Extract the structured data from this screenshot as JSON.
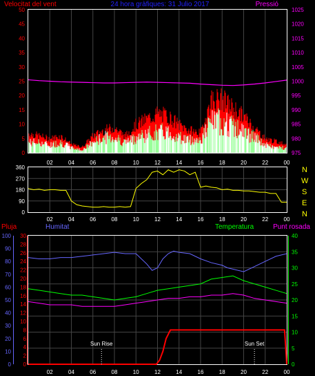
{
  "colors": {
    "wind": "#ff0000",
    "gust_fill": "#ff0000",
    "gust_dark": "#ffffff",
    "wind_mid": "#99ff99",
    "pressure": "#ff00ff",
    "direction": "#ffff00",
    "rain": "#ff0000",
    "humidity": "#6666ff",
    "temperature": "#00ff00",
    "dewpoint": "#ff00ff",
    "frame": "#ffffff",
    "grid": "#444444",
    "title": "#2222ff",
    "ticks_red": "#ff0000",
    "ticks_magenta": "#ff00ff",
    "ticks_blue": "#6666ff",
    "ticks_green": "#00ff00",
    "ticks_yellow": "#ffff00"
  },
  "chart_data": [
    {
      "type": "line",
      "title": "24 hora gràfiques: 31 Julio 2017",
      "left_label": "Velocitat del vent",
      "right_label": "Pressió",
      "x_ticks": [
        "02",
        "04",
        "06",
        "08",
        "10",
        "12",
        "14",
        "16",
        "18",
        "20",
        "22",
        "00"
      ],
      "y_left_ticks": [
        0,
        5,
        10,
        15,
        20,
        25,
        30,
        35,
        40,
        45,
        50
      ],
      "ylim_left": [
        0,
        50
      ],
      "y_right_ticks": [
        975,
        980,
        985,
        990,
        995,
        1000,
        1005,
        1010,
        1015,
        1020,
        1025
      ],
      "ylim_right": [
        975,
        1025
      ],
      "xlim": [
        0,
        24
      ],
      "series": [
        {
          "key": "pressure",
          "axis": "right",
          "x": [
            0,
            1,
            2,
            3,
            4,
            5,
            6,
            7,
            8,
            9,
            10,
            11,
            12,
            13,
            14,
            15,
            16,
            17,
            18,
            19,
            20,
            21,
            22,
            23,
            24
          ],
          "values": [
            1000.5,
            1000.2,
            1000.0,
            999.8,
            999.7,
            999.6,
            999.5,
            999.4,
            999.4,
            999.5,
            999.6,
            999.7,
            999.6,
            999.5,
            999.4,
            999.3,
            999.0,
            998.8,
            998.6,
            998.5,
            998.7,
            999.0,
            999.4,
            999.9,
            1000.4
          ]
        },
        {
          "key": "gust",
          "axis": "left",
          "x": [
            0,
            1,
            2,
            3,
            4,
            5,
            6,
            7,
            8,
            9,
            10,
            11,
            12,
            13,
            14,
            15,
            16,
            17,
            18,
            19,
            20,
            21,
            22,
            23,
            24
          ],
          "values": [
            7,
            6,
            5,
            6,
            3,
            2,
            6,
            8,
            9,
            6,
            10,
            12,
            14,
            13,
            10,
            8,
            7,
            19,
            19,
            16,
            13,
            9,
            5,
            4,
            3
          ]
        },
        {
          "key": "wind",
          "axis": "left",
          "x": [
            0,
            1,
            2,
            3,
            4,
            5,
            6,
            7,
            8,
            9,
            10,
            11,
            12,
            13,
            14,
            15,
            16,
            17,
            18,
            19,
            20,
            21,
            22,
            23,
            24
          ],
          "values": [
            4,
            4,
            3,
            4,
            2,
            1,
            4,
            6,
            6,
            4,
            6,
            7,
            8,
            8,
            6,
            5,
            5,
            12,
            12,
            10,
            8,
            6,
            3,
            2,
            2
          ]
        }
      ]
    },
    {
      "type": "line",
      "right_labels": [
        "N",
        "W",
        "S",
        "E",
        "N"
      ],
      "y_ticks": [
        0,
        90,
        180,
        270,
        360
      ],
      "ylim": [
        0,
        360
      ],
      "x_ticks": [
        "02",
        "04",
        "06",
        "08",
        "10",
        "12",
        "14",
        "16",
        "18",
        "20",
        "22",
        "00"
      ],
      "xlim": [
        0,
        24
      ],
      "series": [
        {
          "key": "direction",
          "x": [
            0,
            0.5,
            1,
            1.5,
            2,
            2.5,
            3,
            3.5,
            4,
            4.5,
            5,
            5.5,
            6,
            6.5,
            7,
            7.5,
            8,
            8.5,
            9,
            9.5,
            10,
            10.5,
            11,
            11.5,
            12,
            12.5,
            13,
            13.5,
            14,
            14.5,
            15,
            15.5,
            16,
            16.5,
            17,
            17.5,
            18,
            18.5,
            19,
            19.5,
            20,
            20.5,
            21,
            21.5,
            22,
            22.5,
            23,
            23.5,
            24
          ],
          "values": [
            190,
            180,
            185,
            175,
            180,
            180,
            175,
            175,
            90,
            60,
            50,
            45,
            40,
            40,
            45,
            40,
            40,
            45,
            40,
            45,
            190,
            230,
            260,
            320,
            330,
            300,
            340,
            320,
            340,
            330,
            300,
            320,
            200,
            210,
            200,
            195,
            180,
            185,
            175,
            175,
            170,
            170,
            165,
            160,
            160,
            150,
            150,
            80,
            80
          ]
        }
      ]
    },
    {
      "type": "line",
      "labels": {
        "rain": "Pluja",
        "humidity": "Humitat",
        "temperature": "Temperatura",
        "dewpoint": "Punt rosada"
      },
      "rain_ticks": [
        0,
        2,
        4,
        6,
        8,
        10,
        12,
        14,
        16,
        18,
        20,
        22,
        24,
        26,
        28,
        30
      ],
      "ylim_rain": [
        0,
        30
      ],
      "humidity_ticks": [
        0,
        10,
        20,
        30,
        40,
        50,
        60,
        70,
        80,
        90,
        100
      ],
      "ylim_humidity": [
        0,
        100
      ],
      "temp_ticks": [
        0,
        5,
        10,
        15,
        20,
        25,
        30,
        35,
        40
      ],
      "ylim_temp": [
        0,
        40
      ],
      "x_ticks": [
        "02",
        "04",
        "06",
        "08",
        "10",
        "12",
        "14",
        "16",
        "18",
        "20",
        "22",
        "00"
      ],
      "xlim": [
        0,
        24
      ],
      "sun_rise": {
        "label": "Sun Rise",
        "x": 6.8
      },
      "sun_set": {
        "label": "Sun Set",
        "x": 21.0
      },
      "series": [
        {
          "key": "humidity",
          "axis": "humidity",
          "x": [
            0,
            1,
            2,
            3,
            4,
            5,
            6,
            7,
            8,
            9,
            10,
            11,
            11.5,
            12,
            12.5,
            13,
            13.5,
            14,
            15,
            16,
            17,
            18,
            18.5,
            19,
            20,
            21,
            22,
            23,
            24
          ],
          "values": [
            83,
            82,
            82,
            83,
            83,
            84,
            85,
            86,
            87,
            86,
            86,
            78,
            73,
            75,
            82,
            86,
            88,
            87,
            86,
            82,
            79,
            77,
            75,
            74,
            72,
            76,
            80,
            84,
            86
          ]
        },
        {
          "key": "temperature",
          "axis": "temp",
          "x": [
            0,
            1,
            2,
            3,
            4,
            5,
            6,
            7,
            8,
            9,
            10,
            11,
            12,
            13,
            14,
            15,
            16,
            17,
            18,
            19,
            20,
            21,
            22,
            23,
            24
          ],
          "values": [
            23.5,
            23,
            22.5,
            22,
            21.5,
            21.5,
            21,
            20.5,
            20,
            20.5,
            21,
            22,
            23,
            23.5,
            24,
            24.5,
            25,
            26.5,
            27,
            27.5,
            26,
            25,
            24,
            23,
            22
          ]
        },
        {
          "key": "dewpoint",
          "axis": "temp",
          "x": [
            0,
            1,
            2,
            3,
            4,
            5,
            6,
            7,
            8,
            9,
            10,
            11,
            12,
            13,
            14,
            15,
            16,
            17,
            18,
            19,
            20,
            21,
            22,
            23,
            24
          ],
          "values": [
            19.5,
            19,
            18.5,
            18.5,
            18.5,
            18,
            18,
            18,
            18,
            18.5,
            19,
            19.5,
            20,
            20.5,
            20.5,
            21,
            21,
            21.5,
            21.5,
            22,
            21.5,
            20.5,
            20,
            19.5,
            19
          ]
        },
        {
          "key": "rain",
          "axis": "rain",
          "x": [
            0,
            5,
            10,
            11.9,
            12.2,
            12.5,
            12.8,
            13.2,
            14,
            16,
            18,
            20,
            22,
            23.8,
            24
          ],
          "values": [
            0,
            0,
            0,
            0,
            1,
            3,
            6,
            8,
            8,
            8,
            8,
            8,
            8,
            8,
            0
          ]
        }
      ]
    }
  ]
}
